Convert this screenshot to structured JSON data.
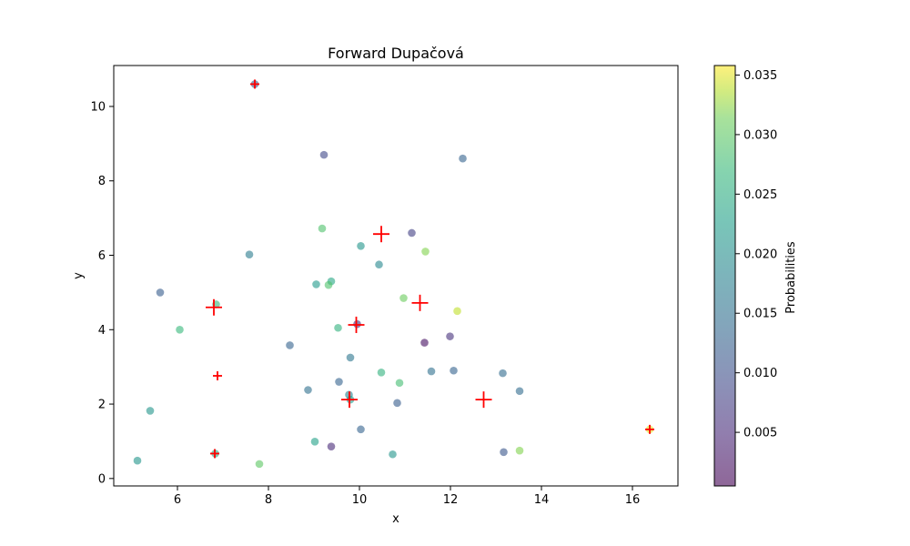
{
  "chart_data": {
    "type": "scatter",
    "title": "Forward Dupačová",
    "xlabel": "x",
    "ylabel": "y",
    "xlim": [
      4.6,
      17.0
    ],
    "ylim": [
      -0.2,
      11.1
    ],
    "xticks": [
      6,
      8,
      10,
      12,
      14,
      16
    ],
    "yticks": [
      0,
      2,
      4,
      6,
      8,
      10
    ],
    "grid": false,
    "colorbar": {
      "label": "Probabilities",
      "colormap": "viridis",
      "range": [
        0.0005,
        0.0358
      ],
      "ticks": [
        0.005,
        0.01,
        0.015,
        0.02,
        0.025,
        0.03,
        0.035
      ],
      "tick_labels": [
        "0.005",
        "0.010",
        "0.015",
        "0.020",
        "0.025",
        "0.030",
        "0.035"
      ]
    },
    "points": [
      {
        "x": 7.7,
        "y": 10.6,
        "p": 0.012
      },
      {
        "x": 9.22,
        "y": 8.7,
        "p": 0.009
      },
      {
        "x": 12.27,
        "y": 8.6,
        "p": 0.013
      },
      {
        "x": 9.18,
        "y": 6.72,
        "p": 0.029
      },
      {
        "x": 11.15,
        "y": 6.6,
        "p": 0.008
      },
      {
        "x": 10.03,
        "y": 6.25,
        "p": 0.021
      },
      {
        "x": 11.45,
        "y": 6.1,
        "p": 0.032
      },
      {
        "x": 7.58,
        "y": 6.02,
        "p": 0.017
      },
      {
        "x": 10.43,
        "y": 5.75,
        "p": 0.019
      },
      {
        "x": 9.38,
        "y": 5.3,
        "p": 0.024
      },
      {
        "x": 9.05,
        "y": 5.22,
        "p": 0.022
      },
      {
        "x": 9.32,
        "y": 5.2,
        "p": 0.029
      },
      {
        "x": 5.62,
        "y": 5.0,
        "p": 0.012
      },
      {
        "x": 10.97,
        "y": 4.85,
        "p": 0.031
      },
      {
        "x": 6.85,
        "y": 4.68,
        "p": 0.027
      },
      {
        "x": 12.15,
        "y": 4.5,
        "p": 0.034
      },
      {
        "x": 9.95,
        "y": 4.15,
        "p": 0.006
      },
      {
        "x": 9.53,
        "y": 4.05,
        "p": 0.026
      },
      {
        "x": 6.05,
        "y": 4.0,
        "p": 0.027
      },
      {
        "x": 11.99,
        "y": 3.82,
        "p": 0.006
      },
      {
        "x": 11.43,
        "y": 3.65,
        "p": 0.002
      },
      {
        "x": 8.47,
        "y": 3.58,
        "p": 0.013
      },
      {
        "x": 9.8,
        "y": 3.25,
        "p": 0.016
      },
      {
        "x": 12.07,
        "y": 2.9,
        "p": 0.013
      },
      {
        "x": 11.58,
        "y": 2.88,
        "p": 0.015
      },
      {
        "x": 10.48,
        "y": 2.85,
        "p": 0.026
      },
      {
        "x": 13.15,
        "y": 2.83,
        "p": 0.014
      },
      {
        "x": 9.55,
        "y": 2.6,
        "p": 0.013
      },
      {
        "x": 10.88,
        "y": 2.57,
        "p": 0.028
      },
      {
        "x": 8.87,
        "y": 2.38,
        "p": 0.015
      },
      {
        "x": 13.52,
        "y": 2.35,
        "p": 0.014
      },
      {
        "x": 9.77,
        "y": 2.25,
        "p": 0.018
      },
      {
        "x": 9.8,
        "y": 2.12,
        "p": 0.022
      },
      {
        "x": 10.83,
        "y": 2.03,
        "p": 0.012
      },
      {
        "x": 5.4,
        "y": 1.82,
        "p": 0.021
      },
      {
        "x": 10.03,
        "y": 1.32,
        "p": 0.013
      },
      {
        "x": 16.38,
        "y": 1.32,
        "p": 0.035
      },
      {
        "x": 9.02,
        "y": 0.99,
        "p": 0.023
      },
      {
        "x": 9.38,
        "y": 0.86,
        "p": 0.005
      },
      {
        "x": 13.52,
        "y": 0.75,
        "p": 0.032
      },
      {
        "x": 13.17,
        "y": 0.71,
        "p": 0.011
      },
      {
        "x": 6.83,
        "y": 0.67,
        "p": 0.024
      },
      {
        "x": 10.73,
        "y": 0.65,
        "p": 0.021
      },
      {
        "x": 5.12,
        "y": 0.48,
        "p": 0.021
      },
      {
        "x": 7.8,
        "y": 0.39,
        "p": 0.03
      }
    ],
    "markers": [
      {
        "x": 7.7,
        "y": 10.6,
        "size": "small"
      },
      {
        "x": 10.48,
        "y": 6.57,
        "size": "large"
      },
      {
        "x": 11.33,
        "y": 4.72,
        "size": "large"
      },
      {
        "x": 6.8,
        "y": 4.6,
        "size": "large"
      },
      {
        "x": 9.93,
        "y": 4.13,
        "size": "large"
      },
      {
        "x": 6.88,
        "y": 2.76,
        "size": "small"
      },
      {
        "x": 9.78,
        "y": 2.12,
        "size": "large"
      },
      {
        "x": 12.73,
        "y": 2.12,
        "size": "large"
      },
      {
        "x": 16.38,
        "y": 1.32,
        "size": "small"
      },
      {
        "x": 6.82,
        "y": 0.67,
        "size": "small"
      }
    ],
    "marker_color": "#ff0000"
  }
}
